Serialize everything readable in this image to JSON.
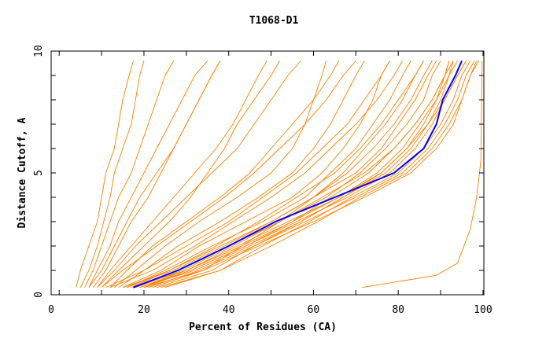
{
  "chart_data": {
    "type": "line",
    "title": "T1068-D1",
    "xlabel": "Percent of Residues (CA)",
    "ylabel": "Distance Cutoff, A",
    "xlim": [
      -1.9,
      100.2
    ],
    "ylim": [
      0,
      10
    ],
    "xticks": [
      0,
      20,
      40,
      60,
      80,
      100
    ],
    "yticks": [
      0,
      5,
      10
    ],
    "grid": false,
    "colors": {
      "models": "#ff8000",
      "highlight": "#0000ff"
    },
    "cutoffs": [
      0.3,
      1,
      2,
      3,
      4,
      5,
      6,
      7,
      8,
      9,
      9.6
    ],
    "highlight": {
      "x": [
        17.5,
        28,
        40,
        51,
        65,
        79,
        86,
        89,
        90.5,
        93.5,
        95
      ]
    },
    "series": [
      {
        "x": [
          4,
          5,
          7,
          9,
          10,
          11,
          13,
          14,
          15,
          16.5,
          17.5
        ]
      },
      {
        "x": [
          5,
          7,
          9,
          10.5,
          12,
          13,
          15,
          17,
          18,
          19,
          20
        ]
      },
      {
        "x": [
          6,
          8,
          10,
          12,
          14,
          17,
          19,
          21,
          23,
          25,
          27
        ]
      },
      {
        "x": [
          7,
          9,
          12,
          14,
          17,
          20,
          23,
          26,
          29,
          32,
          35
        ]
      },
      {
        "x": [
          8,
          11,
          14,
          17,
          21,
          24,
          27,
          30,
          33,
          36,
          38
        ]
      },
      {
        "x": [
          9,
          12,
          17,
          22,
          27,
          32,
          37,
          41,
          44,
          47,
          49
        ]
      },
      {
        "x": [
          10,
          14,
          20,
          26,
          31,
          35,
          39,
          42,
          46,
          50,
          52
        ]
      },
      {
        "x": [
          12,
          16,
          22,
          30,
          38,
          45,
          50,
          55,
          60,
          64,
          66
        ]
      },
      {
        "x": [
          13,
          18,
          25,
          33,
          42,
          50,
          55,
          58,
          60,
          62,
          63
        ]
      },
      {
        "x": [
          14,
          20,
          28,
          38,
          47,
          55,
          60,
          64,
          67,
          70,
          72
        ]
      },
      {
        "x": [
          15,
          24,
          33,
          44,
          55,
          62,
          67,
          71,
          74,
          76,
          78
        ]
      },
      {
        "x": [
          16,
          25,
          36,
          48,
          58,
          64,
          70,
          74,
          78,
          81,
          83
        ]
      },
      {
        "x": [
          17,
          26,
          38,
          50,
          60,
          68,
          74,
          79,
          83,
          86,
          88
        ]
      },
      {
        "x": [
          18,
          28,
          40,
          52,
          63,
          71,
          77,
          82,
          86,
          88,
          90
        ]
      },
      {
        "x": [
          19,
          30,
          42,
          54,
          66,
          75,
          81,
          85,
          89,
          92,
          93
        ]
      },
      {
        "x": [
          20,
          31,
          44,
          56,
          68,
          78,
          84,
          88,
          91,
          94,
          96
        ]
      },
      {
        "x": [
          21,
          33,
          46,
          58,
          70,
          81,
          87,
          91,
          94,
          96,
          98
        ]
      },
      {
        "x": [
          22,
          34,
          47,
          60,
          72,
          83,
          89,
          93,
          95,
          97,
          98.5
        ]
      },
      {
        "x": [
          23,
          36,
          46,
          57,
          67,
          76,
          82,
          87,
          91,
          94,
          96
        ]
      },
      {
        "x": [
          24,
          38,
          48,
          59,
          69,
          80,
          86,
          90,
          93,
          95,
          97
        ]
      },
      {
        "x": [
          16,
          26,
          37,
          47,
          56,
          65,
          71,
          76,
          80,
          84,
          86
        ]
      },
      {
        "x": [
          18,
          29,
          41,
          52,
          62,
          72,
          79,
          84,
          88,
          91,
          92
        ]
      },
      {
        "x": [
          19,
          32,
          45,
          57,
          67,
          77,
          83,
          87,
          90,
          92,
          94
        ]
      },
      {
        "x": [
          20,
          34,
          43,
          52,
          60,
          67,
          72,
          77,
          81,
          84,
          86
        ]
      },
      {
        "x": [
          12,
          22,
          32,
          41,
          50,
          58,
          64,
          70,
          75,
          79,
          81
        ]
      },
      {
        "x": [
          11,
          20,
          30,
          40,
          48,
          56,
          62,
          68,
          72,
          76,
          78
        ]
      },
      {
        "x": [
          15,
          27,
          39,
          50,
          60,
          70,
          76,
          80,
          84,
          87,
          89
        ]
      },
      {
        "x": [
          17,
          30,
          43,
          55,
          66,
          76,
          82,
          86,
          89,
          91,
          92
        ]
      },
      {
        "x": [
          25,
          38,
          50,
          61,
          71,
          82,
          88,
          92,
          95,
          97,
          99
        ]
      },
      {
        "x": [
          19,
          31,
          44,
          55,
          64,
          73,
          79,
          84,
          88,
          91,
          93
        ]
      },
      {
        "x": [
          7,
          10,
          13,
          16,
          19,
          23,
          27,
          30,
          33,
          36,
          38
        ]
      },
      {
        "x": [
          9,
          13,
          18,
          24,
          30,
          36,
          42,
          46,
          50,
          54,
          57
        ]
      },
      {
        "x": [
          10,
          15,
          23,
          31,
          39,
          46,
          52,
          58,
          63,
          67,
          70
        ]
      }
    ],
    "outlier": {
      "points": [
        [
          71.5,
          0.3
        ],
        [
          89,
          0.8
        ],
        [
          94,
          1.3
        ],
        [
          97,
          2.7
        ],
        [
          98.5,
          4
        ],
        [
          99.5,
          5.5
        ],
        [
          99.8,
          9.6
        ]
      ]
    }
  }
}
